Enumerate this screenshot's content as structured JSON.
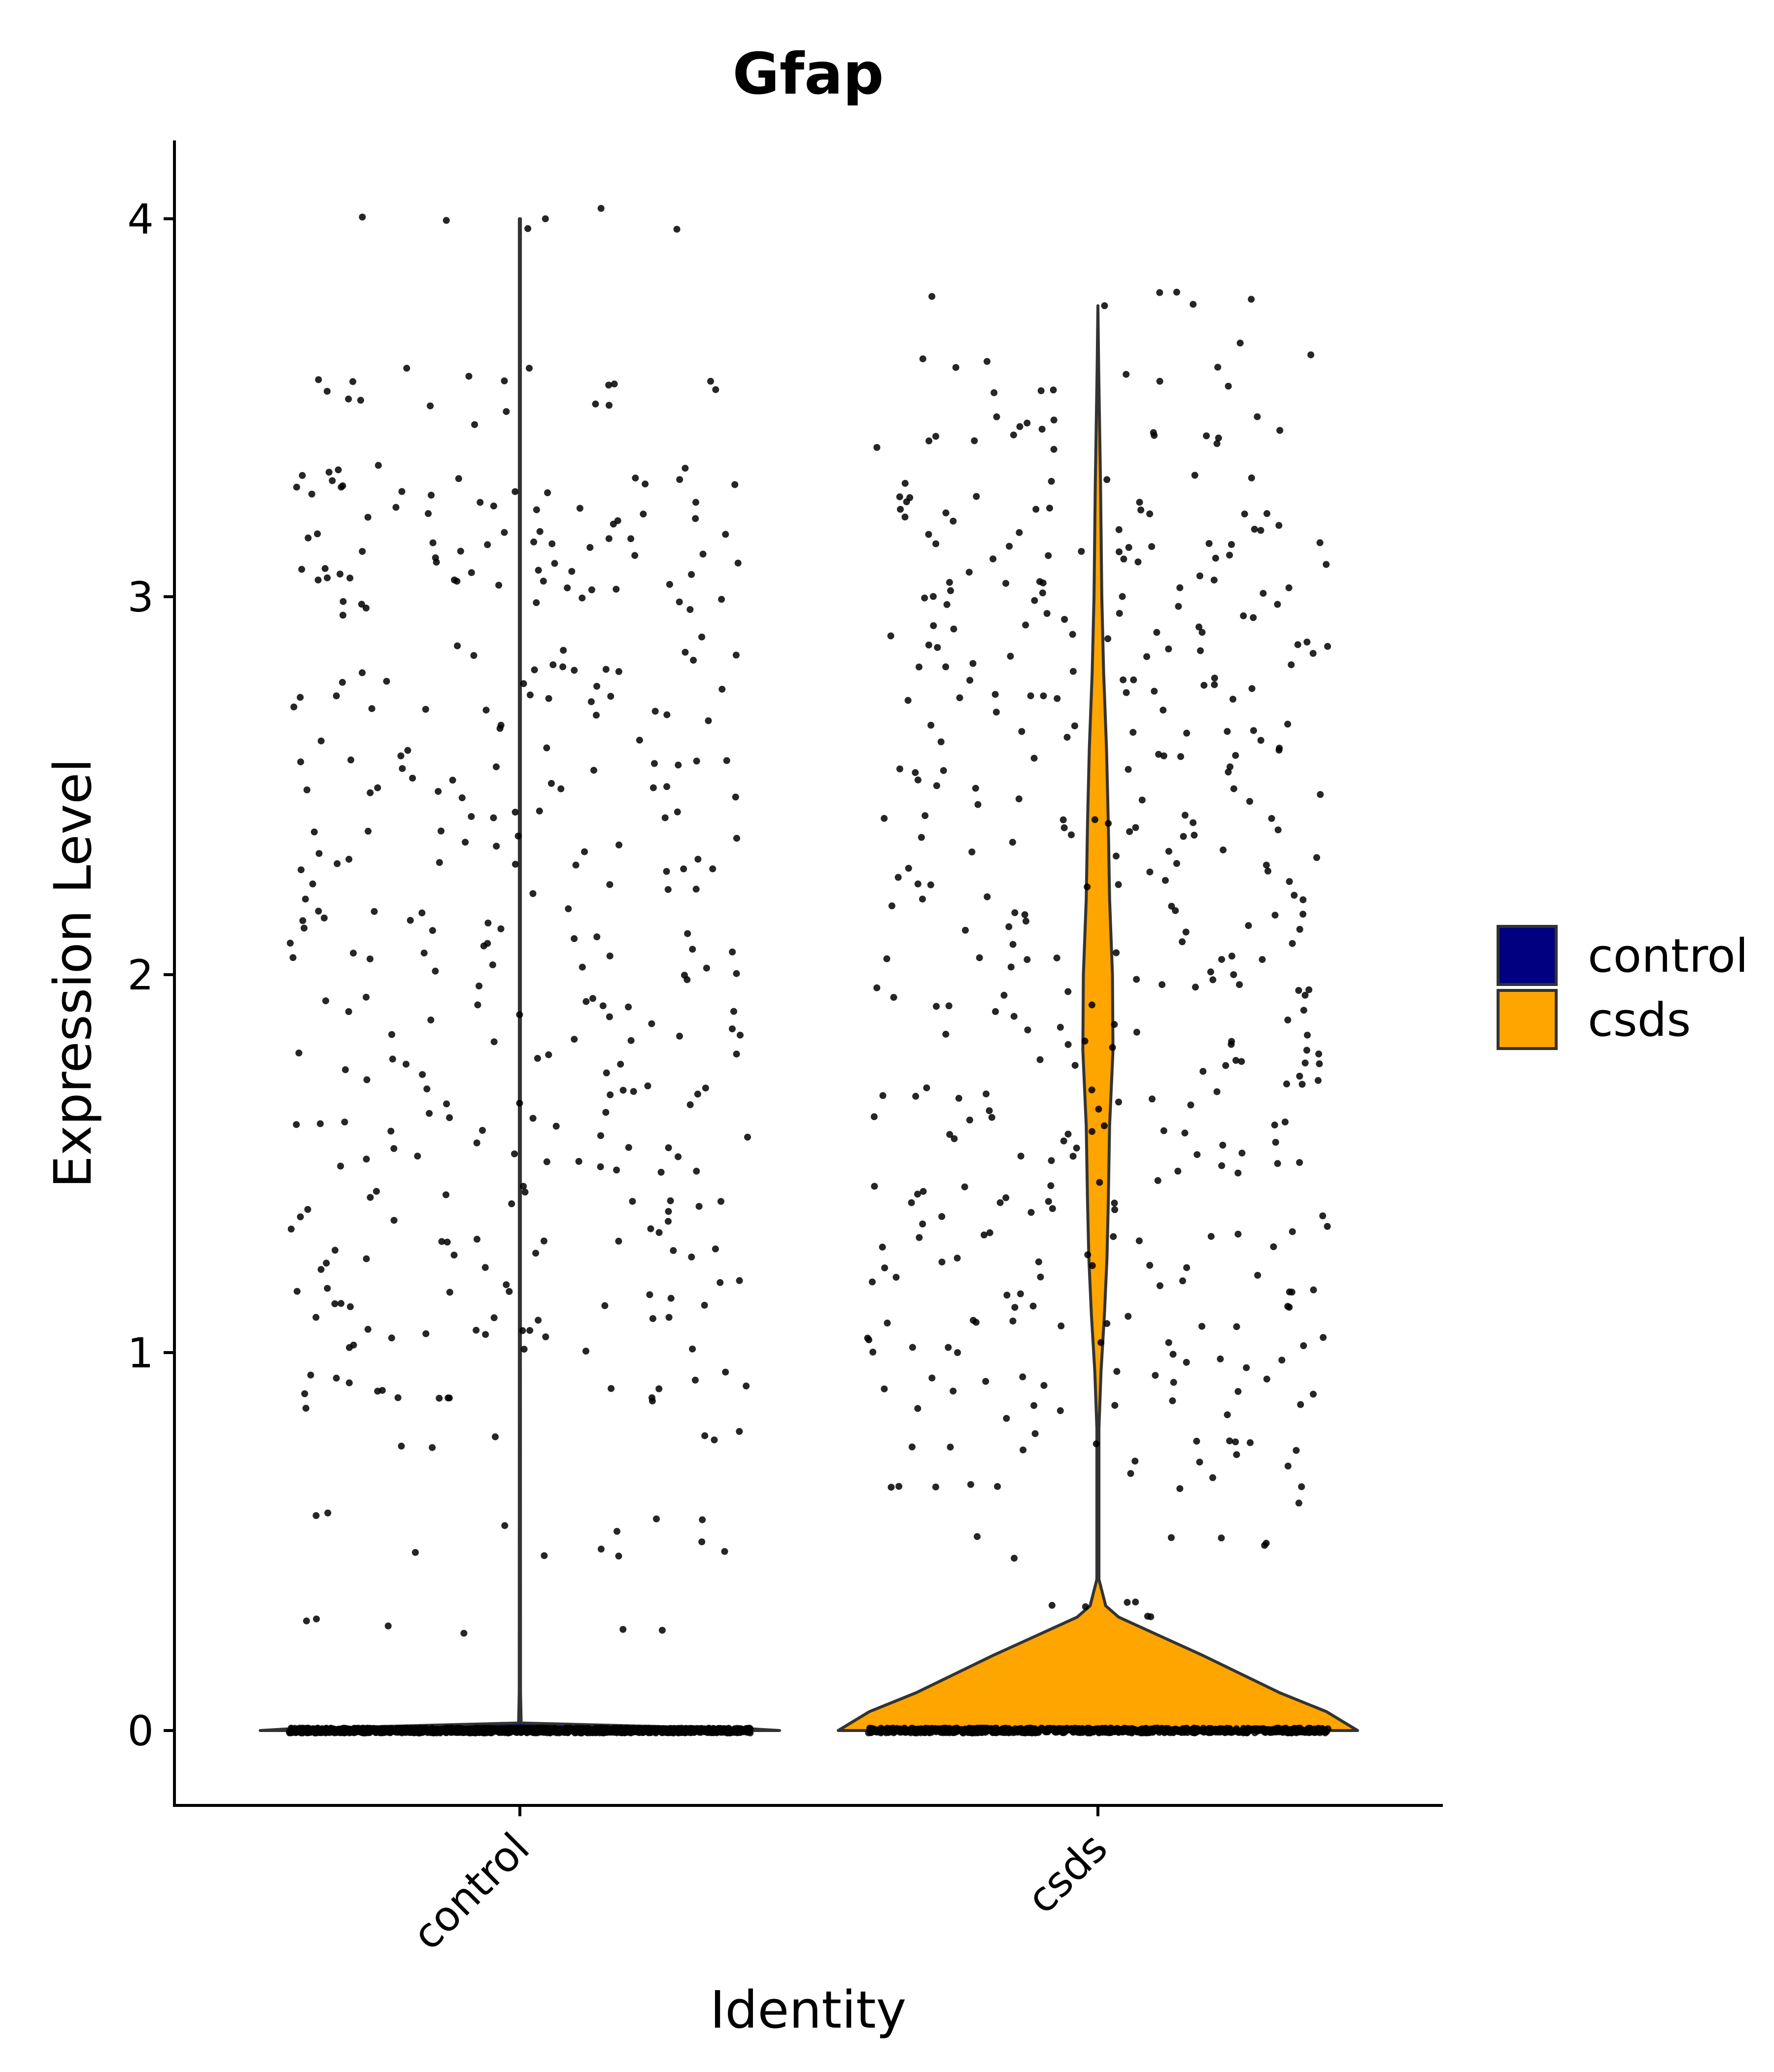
{
  "chart_data": {
    "type": "violin",
    "title": "Gfap",
    "xlabel": "Identity",
    "ylabel": "Expression Level",
    "categories": [
      "control",
      "csds"
    ],
    "ylim": [
      -0.2,
      4.2
    ],
    "yticks": [
      0,
      1,
      2,
      3,
      4
    ],
    "grid": false,
    "legend": {
      "position": "right",
      "entries": [
        {
          "label": "control",
          "color": "#000080"
        },
        {
          "label": "csds",
          "color": "#FFA500"
        }
      ]
    },
    "series": [
      {
        "name": "control",
        "color": "#000080",
        "violin_profile": [
          [
            0,
            1.0
          ],
          [
            0.004,
            0.9
          ],
          [
            0.02,
            0.005
          ],
          [
            0.1,
            0.0025
          ],
          [
            1.0,
            0.002
          ],
          [
            4.0,
            0.002
          ]
        ],
        "n_zero_points": 1500,
        "jitter_seed": 17,
        "nonzero_points_sample": [
          4.0,
          3.57,
          3.56,
          3.49,
          3.34,
          3.29,
          3.29,
          3.24,
          3.22,
          3.17,
          3.14,
          3.12,
          3.07,
          3.06,
          3.05,
          3.02,
          2.97,
          2.87,
          2.82,
          2.77,
          2.74,
          2.7,
          2.66,
          2.6,
          2.55,
          2.52,
          2.47,
          2.43,
          2.38,
          2.34,
          2.29,
          2.24,
          2.2,
          2.15,
          2.1,
          2.06,
          2.02,
          1.97,
          1.92,
          1.88,
          1.84,
          1.79,
          1.74,
          1.7,
          1.66,
          1.61,
          1.57,
          1.52,
          1.48,
          1.44,
          1.4,
          1.35,
          1.3,
          1.27,
          1.22,
          1.17,
          1.13,
          1.09,
          1.05,
          1.02,
          0.92,
          0.9,
          0.88,
          0.78,
          0.56,
          0.48,
          0.29
        ]
      },
      {
        "name": "csds",
        "color": "#FFA500",
        "violin_profile": [
          [
            0,
            1.0
          ],
          [
            0.05,
            0.88
          ],
          [
            0.1,
            0.7
          ],
          [
            0.15,
            0.55
          ],
          [
            0.2,
            0.4
          ],
          [
            0.25,
            0.24
          ],
          [
            0.3,
            0.08
          ],
          [
            0.33,
            0.03
          ],
          [
            0.4,
            0.004
          ],
          [
            0.8,
            0.004
          ],
          [
            0.95,
            0.012
          ],
          [
            1.1,
            0.025
          ],
          [
            1.25,
            0.035
          ],
          [
            1.4,
            0.04
          ],
          [
            1.6,
            0.045
          ],
          [
            1.8,
            0.058
          ],
          [
            2.0,
            0.056
          ],
          [
            2.2,
            0.045
          ],
          [
            2.4,
            0.04
          ],
          [
            2.6,
            0.033
          ],
          [
            2.8,
            0.022
          ],
          [
            3.0,
            0.015
          ],
          [
            3.3,
            0.01
          ],
          [
            3.6,
            0.003
          ],
          [
            3.77,
            0.0
          ]
        ],
        "n_zero_points": 900,
        "jitter_seed": 29,
        "nonzero_points_sample": [
          3.77,
          3.64,
          3.57,
          3.45,
          3.44,
          3.42,
          3.3,
          3.25,
          3.22,
          3.2,
          3.14,
          3.11,
          3.1,
          3.04,
          3.01,
          2.99,
          2.94,
          2.92,
          2.88,
          2.85,
          2.82,
          2.78,
          2.75,
          2.7,
          2.66,
          2.62,
          2.58,
          2.54,
          2.5,
          2.45,
          2.41,
          2.37,
          2.33,
          2.29,
          2.24,
          2.2,
          2.16,
          2.12,
          2.08,
          2.04,
          2.0,
          1.96,
          1.92,
          1.88,
          1.84,
          1.8,
          1.76,
          1.72,
          1.68,
          1.64,
          1.6,
          1.56,
          1.52,
          1.48,
          1.44,
          1.4,
          1.36,
          1.32,
          1.28,
          1.24,
          1.2,
          1.16,
          1.12,
          1.08,
          1.04,
          1.0,
          0.96,
          0.93,
          0.89,
          0.86,
          0.75,
          0.73,
          0.68,
          0.64,
          0.49,
          0.34
        ]
      }
    ]
  }
}
